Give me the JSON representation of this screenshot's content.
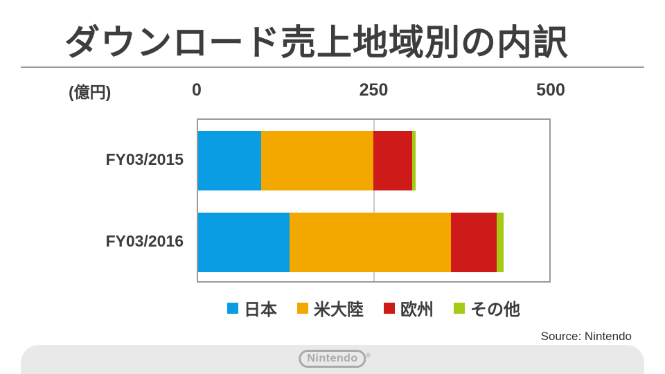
{
  "title": "ダウンロード売上地域別の内訳",
  "unit_label": "(億円)",
  "source": "Source: Nintendo",
  "footer": {
    "logo_text": "Nintendo",
    "reg_mark": "®"
  },
  "colors": {
    "japan_blue": "#0a9de4",
    "americas_orange": "#f3a800",
    "europe_red": "#cf1a1a",
    "other_green": "#a6c913",
    "text_dark_gray": "#3d3d3d",
    "footer_gray": "#e9e9e9"
  },
  "chart_data": {
    "type": "bar",
    "orientation": "horizontal",
    "stacked": true,
    "title": "ダウンロード売上地域別の内訳",
    "unit": "億円",
    "categories": [
      "FY03/2015",
      "FY03/2016"
    ],
    "series": [
      {
        "name": "日本",
        "color": "#0a9de4",
        "values": [
          90,
          130
        ]
      },
      {
        "name": "米大陸",
        "color": "#f3a800",
        "values": [
          160,
          230
        ]
      },
      {
        "name": "欧州",
        "color": "#cf1a1a",
        "values": [
          55,
          65
        ]
      },
      {
        "name": "その他",
        "color": "#a6c913",
        "values": [
          5,
          10
        ]
      }
    ],
    "x_ticks": [
      0,
      250,
      500
    ],
    "xlim": [
      0,
      500
    ],
    "grid": true,
    "legend_position": "bottom"
  }
}
